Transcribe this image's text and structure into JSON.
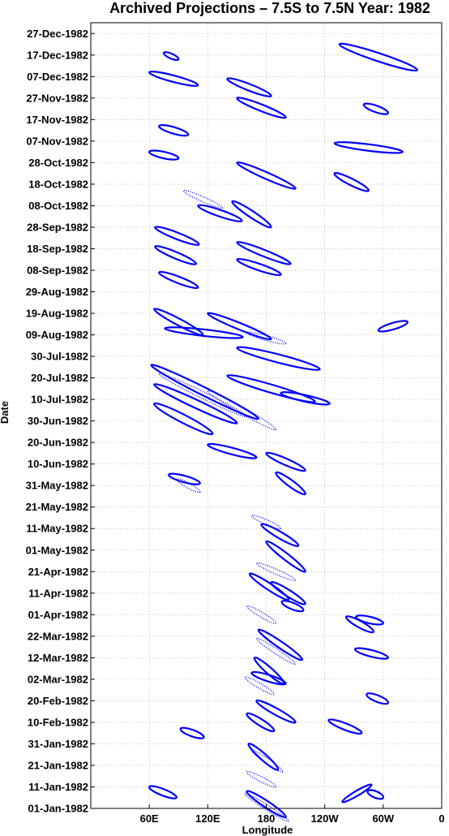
{
  "chart_data": {
    "type": "contour",
    "title": "Archived Projections – 7.5S to 7.5N Year: 1982",
    "xlabel": "Longitude",
    "ylabel": "Date",
    "x_ticks": [
      {
        "lon": 60,
        "label": "60E"
      },
      {
        "lon": 120,
        "label": "120E"
      },
      {
        "lon": 180,
        "label": "180"
      },
      {
        "lon": 240,
        "label": "120W"
      },
      {
        "lon": 300,
        "label": "60W"
      },
      {
        "lon": 360,
        "label": "0"
      }
    ],
    "y_ticks": [
      {
        "day": 1,
        "label": "01-Jan-1982"
      },
      {
        "day": 11,
        "label": "11-Jan-1982"
      },
      {
        "day": 21,
        "label": "21-Jan-1982"
      },
      {
        "day": 31,
        "label": "31-Jan-1982"
      },
      {
        "day": 41,
        "label": "10-Feb-1982"
      },
      {
        "day": 51,
        "label": "20-Feb-1982"
      },
      {
        "day": 61,
        "label": "02-Mar-1982"
      },
      {
        "day": 71,
        "label": "12-Mar-1982"
      },
      {
        "day": 81,
        "label": "22-Mar-1982"
      },
      {
        "day": 91,
        "label": "01-Apr-1982"
      },
      {
        "day": 101,
        "label": "11-Apr-1982"
      },
      {
        "day": 111,
        "label": "21-Apr-1982"
      },
      {
        "day": 121,
        "label": "01-May-1982"
      },
      {
        "day": 131,
        "label": "11-May-1982"
      },
      {
        "day": 141,
        "label": "21-May-1982"
      },
      {
        "day": 151,
        "label": "31-May-1982"
      },
      {
        "day": 161,
        "label": "10-Jun-1982"
      },
      {
        "day": 171,
        "label": "20-Jun-1982"
      },
      {
        "day": 181,
        "label": "30-Jun-1982"
      },
      {
        "day": 191,
        "label": "10-Jul-1982"
      },
      {
        "day": 201,
        "label": "20-Jul-1982"
      },
      {
        "day": 211,
        "label": "30-Jul-1982"
      },
      {
        "day": 221,
        "label": "09-Aug-1982"
      },
      {
        "day": 231,
        "label": "19-Aug-1982"
      },
      {
        "day": 241,
        "label": "29-Aug-1982"
      },
      {
        "day": 251,
        "label": "08-Sep-1982"
      },
      {
        "day": 261,
        "label": "18-Sep-1982"
      },
      {
        "day": 271,
        "label": "28-Sep-1982"
      },
      {
        "day": 281,
        "label": "08-Oct-1982"
      },
      {
        "day": 291,
        "label": "18-Oct-1982"
      },
      {
        "day": 301,
        "label": "28-Oct-1982"
      },
      {
        "day": 311,
        "label": "07-Nov-1982"
      },
      {
        "day": 321,
        "label": "17-Nov-1982"
      },
      {
        "day": 331,
        "label": "27-Nov-1982"
      },
      {
        "day": 341,
        "label": "07-Dec-1982"
      },
      {
        "day": 351,
        "label": "17-Dec-1982"
      },
      {
        "day": 361,
        "label": "27-Dec-1982"
      }
    ],
    "xlim": [
      0,
      360
    ],
    "ylim": [
      1,
      366
    ],
    "grid": true,
    "color": "#0000ff",
    "contours": [
      {
        "type": "positive",
        "lon": 88,
        "day": 6,
        "dlon": -28,
        "dday": 5,
        "w": 4
      },
      {
        "type": "negative",
        "lon": 158,
        "day": 8,
        "dlon": 45,
        "dday": -13,
        "w": 3
      },
      {
        "type": "positive",
        "lon": 160,
        "day": 9,
        "dlon": 40,
        "dday": -12,
        "w": 4
      },
      {
        "type": "positive",
        "lon": 258,
        "day": 4,
        "dlon": 30,
        "dday": 8,
        "w": 3
      },
      {
        "type": "positive",
        "lon": 300,
        "day": 6,
        "dlon": -16,
        "dday": 3,
        "w": 4
      },
      {
        "type": "negative",
        "lon": 160,
        "day": 18,
        "dlon": 30,
        "dday": -7,
        "w": 3
      },
      {
        "type": "positive",
        "lon": 162,
        "day": 31,
        "dlon": 30,
        "dday": -12,
        "w": 4
      },
      {
        "type": "negative",
        "lon": 165,
        "day": 28,
        "dlon": 32,
        "dday": -10,
        "w": 3
      },
      {
        "type": "positive",
        "lon": 92,
        "day": 38,
        "dlon": 24,
        "dday": -4,
        "w": 4
      },
      {
        "type": "positive",
        "lon": 278,
        "day": 36,
        "dlon": -34,
        "dday": 6,
        "w": 4
      },
      {
        "type": "positive",
        "lon": 160,
        "day": 45,
        "dlon": 28,
        "dday": -8,
        "w": 4
      },
      {
        "type": "positive",
        "lon": 170,
        "day": 51,
        "dlon": 40,
        "dday": -10,
        "w": 4
      },
      {
        "type": "positive",
        "lon": 305,
        "day": 50,
        "dlon": -22,
        "dday": 4,
        "w": 4
      },
      {
        "type": "positive",
        "lon": 165,
        "day": 64,
        "dlon": 35,
        "dday": -5,
        "w": 4
      },
      {
        "type": "negative",
        "lon": 158,
        "day": 62,
        "dlon": 30,
        "dday": -8,
        "w": 3
      },
      {
        "type": "positive",
        "lon": 168,
        "day": 71,
        "dlon": 30,
        "dday": -12,
        "w": 4
      },
      {
        "type": "positive",
        "lon": 305,
        "day": 71,
        "dlon": -34,
        "dday": 4,
        "w": 4
      },
      {
        "type": "positive",
        "lon": 172,
        "day": 84,
        "dlon": 45,
        "dday": -14,
        "w": 4
      },
      {
        "type": "negative",
        "lon": 170,
        "day": 80,
        "dlon": 40,
        "dday": -12,
        "w": 3
      },
      {
        "type": "positive",
        "lon": 290,
        "day": 83,
        "dlon": -28,
        "dday": 7,
        "w": 4
      },
      {
        "type": "positive",
        "lon": 300,
        "day": 87,
        "dlon": -28,
        "dday": 3,
        "w": 4
      },
      {
        "type": "positive",
        "lon": 218,
        "day": 93,
        "dlon": -22,
        "dday": 4,
        "w": 4
      },
      {
        "type": "negative",
        "lon": 160,
        "day": 95,
        "dlon": 30,
        "dday": -8,
        "w": 3
      },
      {
        "type": "positive",
        "lon": 185,
        "day": 106,
        "dlon": 35,
        "dday": -10,
        "w": 4
      },
      {
        "type": "positive",
        "lon": 163,
        "day": 110,
        "dlon": 40,
        "dday": -12,
        "w": 4
      },
      {
        "type": "negative",
        "lon": 170,
        "day": 115,
        "dlon": 40,
        "dday": -8,
        "w": 3
      },
      {
        "type": "positive",
        "lon": 180,
        "day": 125,
        "dlon": 40,
        "dday": -14,
        "w": 4
      },
      {
        "type": "positive",
        "lon": 175,
        "day": 133,
        "dlon": 38,
        "dday": -10,
        "w": 4
      },
      {
        "type": "negative",
        "lon": 165,
        "day": 137,
        "dlon": 30,
        "dday": -6,
        "w": 3
      },
      {
        "type": "positive",
        "lon": 80,
        "day": 156,
        "dlon": 32,
        "dday": -4,
        "w": 4
      },
      {
        "type": "negative",
        "lon": 88,
        "day": 154,
        "dlon": 24,
        "dday": -6,
        "w": 3
      },
      {
        "type": "positive",
        "lon": 190,
        "day": 157,
        "dlon": 30,
        "dday": -10,
        "w": 4
      },
      {
        "type": "positive",
        "lon": 180,
        "day": 166,
        "dlon": 40,
        "dday": -8,
        "w": 4
      },
      {
        "type": "positive",
        "lon": 120,
        "day": 170,
        "dlon": 50,
        "dday": -6,
        "w": 4
      },
      {
        "type": "positive",
        "lon": 65,
        "day": 189,
        "dlon": 60,
        "dday": -14,
        "w": 5
      },
      {
        "type": "positive",
        "lon": 65,
        "day": 198,
        "dlon": 85,
        "dday": -18,
        "w": 5
      },
      {
        "type": "positive",
        "lon": 62,
        "day": 207,
        "dlon": 110,
        "dday": -25,
        "w": 5
      },
      {
        "type": "negative",
        "lon": 70,
        "day": 203,
        "dlon": 90,
        "dday": -20,
        "w": 4
      },
      {
        "type": "positive",
        "lon": 150,
        "day": 215,
        "dlon": 85,
        "dday": -10,
        "w": 5
      },
      {
        "type": "positive",
        "lon": 140,
        "day": 202,
        "dlon": 90,
        "dday": -12,
        "w": 5
      },
      {
        "type": "negative",
        "lon": 120,
        "day": 195,
        "dlon": 70,
        "dday": -18,
        "w": 4
      },
      {
        "type": "positive",
        "lon": 195,
        "day": 194,
        "dlon": 50,
        "dday": -5,
        "w": 4
      },
      {
        "type": "positive",
        "lon": 65,
        "day": 233,
        "dlon": 50,
        "dday": -12,
        "w": 4
      },
      {
        "type": "positive",
        "lon": 120,
        "day": 231,
        "dlon": 65,
        "dday": -12,
        "w": 4
      },
      {
        "type": "positive",
        "lon": 76,
        "day": 224,
        "dlon": 80,
        "dday": -4,
        "w": 4
      },
      {
        "type": "negative",
        "lon": 160,
        "day": 222,
        "dlon": 40,
        "dday": -5,
        "w": 3
      },
      {
        "type": "positive",
        "lon": 295,
        "day": 223,
        "dlon": 30,
        "dday": 4,
        "w": 4
      },
      {
        "type": "positive",
        "lon": 66,
        "day": 271,
        "dlon": 45,
        "dday": -8,
        "w": 4
      },
      {
        "type": "positive",
        "lon": 66,
        "day": 262,
        "dlon": 42,
        "dday": -8,
        "w": 4
      },
      {
        "type": "positive",
        "lon": 150,
        "day": 264,
        "dlon": 55,
        "dday": -10,
        "w": 4
      },
      {
        "type": "positive",
        "lon": 150,
        "day": 256,
        "dlon": 45,
        "dday": -7,
        "w": 4
      },
      {
        "type": "positive",
        "lon": 70,
        "day": 250,
        "dlon": 40,
        "dday": -7,
        "w": 4
      },
      {
        "type": "positive",
        "lon": 110,
        "day": 281,
        "dlon": 45,
        "dday": -7,
        "w": 4
      },
      {
        "type": "positive",
        "lon": 145,
        "day": 283,
        "dlon": 40,
        "dday": -12,
        "w": 4
      },
      {
        "type": "negative",
        "lon": 95,
        "day": 288,
        "dlon": 40,
        "dday": -8,
        "w": 3
      },
      {
        "type": "positive",
        "lon": 150,
        "day": 301,
        "dlon": 60,
        "dday": -12,
        "w": 4
      },
      {
        "type": "positive",
        "lon": 250,
        "day": 296,
        "dlon": 35,
        "dday": -8,
        "w": 4
      },
      {
        "type": "positive",
        "lon": 60,
        "day": 306,
        "dlon": 30,
        "dday": -3,
        "w": 4
      },
      {
        "type": "positive",
        "lon": 70,
        "day": 318,
        "dlon": 30,
        "dday": -4,
        "w": 4
      },
      {
        "type": "positive",
        "lon": 250,
        "day": 310,
        "dlon": 70,
        "dday": -4,
        "w": 4
      },
      {
        "type": "positive",
        "lon": 150,
        "day": 331,
        "dlon": 50,
        "dday": -9,
        "w": 4
      },
      {
        "type": "positive",
        "lon": 140,
        "day": 340,
        "dlon": 45,
        "dday": -8,
        "w": 4
      },
      {
        "type": "positive",
        "lon": 60,
        "day": 343,
        "dlon": 50,
        "dday": -6,
        "w": 4
      },
      {
        "type": "positive",
        "lon": 255,
        "day": 356,
        "dlon": 80,
        "dday": -12,
        "w": 5
      },
      {
        "type": "positive",
        "lon": 75,
        "day": 352,
        "dlon": 15,
        "dday": -3,
        "w": 3
      },
      {
        "type": "positive",
        "lon": 280,
        "day": 328,
        "dlon": 25,
        "dday": -4,
        "w": 4
      }
    ]
  }
}
